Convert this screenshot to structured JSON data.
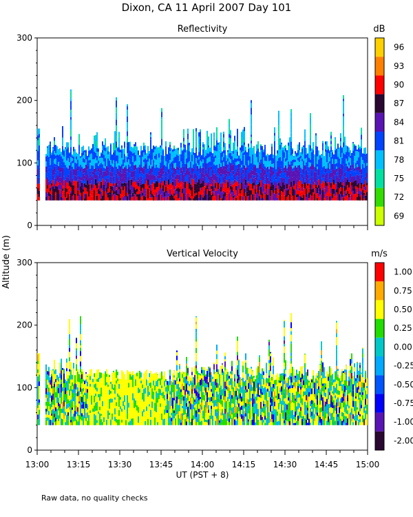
{
  "title": "Dixon, CA 11 April 2007  Day 101",
  "ylabel": "Altitude (m)",
  "xlabel": "UT  (PST + 8)",
  "note": "Raw data, no quality checks",
  "chart_data": [
    {
      "type": "heatmap",
      "title": "Reflectivity",
      "ylabel": "Altitude (m)",
      "xlabel": "UT  (PST + 8)",
      "x_ticks": [
        "13:00",
        "13:15",
        "13:30",
        "13:45",
        "14:00",
        "14:15",
        "14:30",
        "14:45",
        "15:00"
      ],
      "x_range_min": [
        0,
        120
      ],
      "y_ticks": [
        0,
        100,
        200,
        300
      ],
      "ylim": [
        0,
        300
      ],
      "colorbar": {
        "unit": "dB",
        "labels": [
          "69",
          "72",
          "75",
          "78",
          "81",
          "84",
          "87",
          "90",
          "93",
          "96"
        ],
        "colors": [
          "#ccff00",
          "#33dd00",
          "#00e0a0",
          "#00c0ff",
          "#0044ff",
          "#5a14b4",
          "#2a0832",
          "#ff0000",
          "#ff8000",
          "#ffd000"
        ]
      },
      "data_altitude_range_m": [
        40,
        220
      ]
    },
    {
      "type": "heatmap",
      "title": "Vertical Velocity",
      "ylabel": "Altitude (m)",
      "xlabel": "UT  (PST + 8)",
      "x_ticks": [
        "13:00",
        "13:15",
        "13:30",
        "13:45",
        "14:00",
        "14:15",
        "14:30",
        "14:45",
        "15:00"
      ],
      "x_range_min": [
        0,
        120
      ],
      "y_ticks": [
        0,
        100,
        200,
        300
      ],
      "ylim": [
        0,
        300
      ],
      "colorbar": {
        "unit": "m/s",
        "labels": [
          "-2.00",
          "-1.00",
          "-0.75",
          "-0.50",
          "-0.25",
          "0.00",
          "0.25",
          "0.50",
          "0.75",
          "1.00"
        ],
        "colors": [
          "#2a0832",
          "#5a14b4",
          "#0000ff",
          "#0055ff",
          "#00aaff",
          "#00c8c8",
          "#22dd00",
          "#ffff00",
          "#ffaa00",
          "#ff0000"
        ]
      },
      "data_altitude_range_m": [
        40,
        220
      ]
    }
  ]
}
